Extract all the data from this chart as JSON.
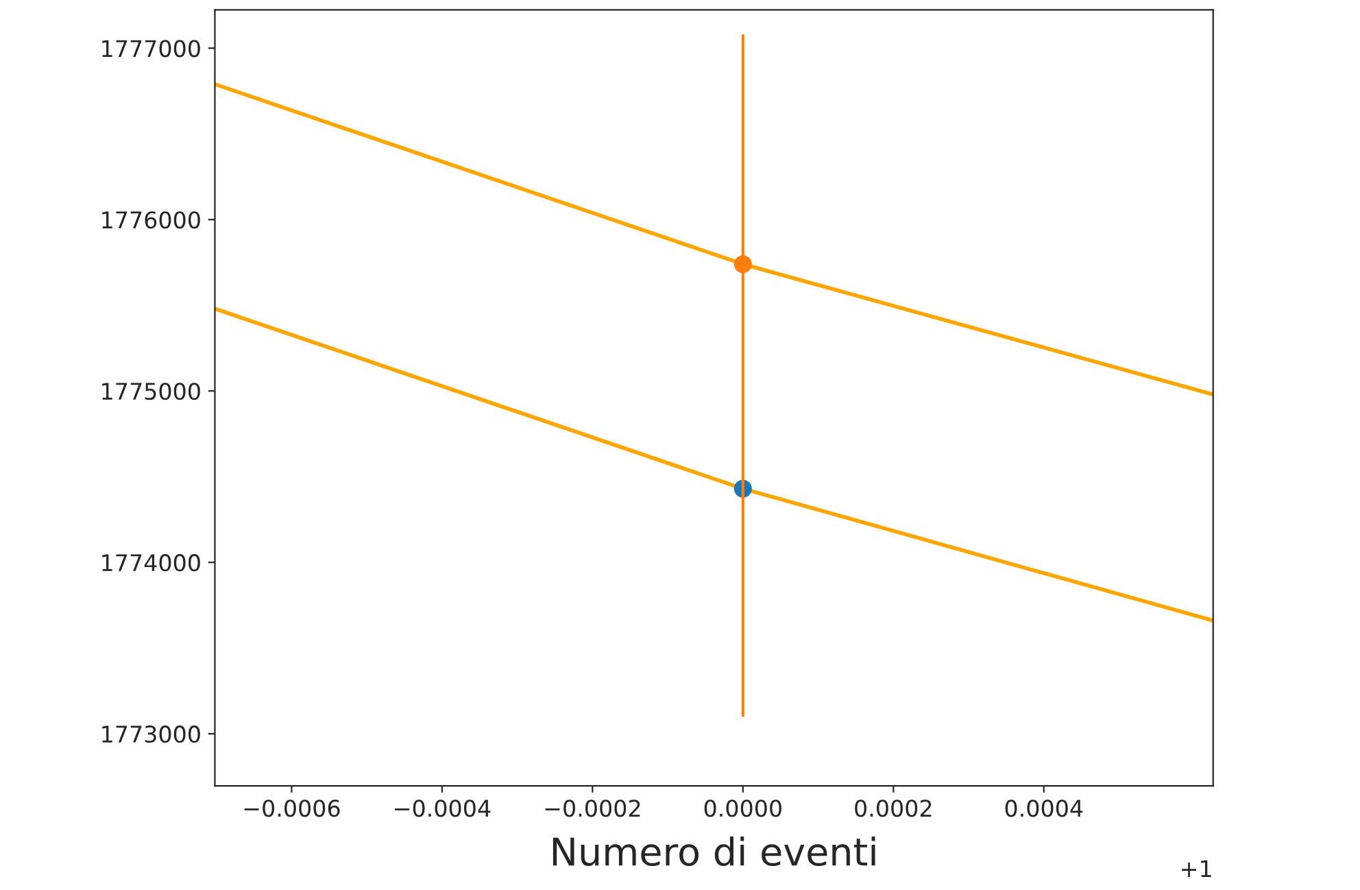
{
  "chart_data": {
    "type": "scatter",
    "xlabel": "Numero di eventi",
    "xlim": [
      -0.000702,
      0.000625
    ],
    "ylim": [
      1772696,
      1777224
    ],
    "xticks": [
      {
        "value": -0.0006,
        "label": "−0.0006"
      },
      {
        "value": -0.0004,
        "label": "−0.0004"
      },
      {
        "value": -0.0002,
        "label": "−0.0002"
      },
      {
        "value": 0,
        "label": "0.0000"
      },
      {
        "value": 0.0002,
        "label": "0.0002"
      },
      {
        "value": 0.0004,
        "label": "0.0004"
      }
    ],
    "yticks": [
      1773000,
      1774000,
      1775000,
      1776000,
      1777000
    ],
    "series": [
      {
        "type": "line",
        "color": "#ffa500",
        "x": [
          -0.000702,
          0,
          0.000625
        ],
        "values": [
          1776790,
          1775740,
          1774980
        ]
      },
      {
        "type": "line",
        "color": "#ffa500",
        "x": [
          -0.000702,
          0,
          0.000625
        ],
        "values": [
          1775480,
          1774430,
          1773660
        ]
      },
      {
        "color": "#1f77b4",
        "marker": "circle",
        "x": [
          0
        ],
        "values": [
          1774430
        ]
      },
      {
        "color": "#ff7f0e",
        "marker": "circle",
        "x": [
          0
        ],
        "values": [
          1775740
        ],
        "errors": [
          [
            1773100,
            1777080
          ]
        ]
      }
    ],
    "grid": false,
    "annotations": [
      "+1"
    ]
  }
}
